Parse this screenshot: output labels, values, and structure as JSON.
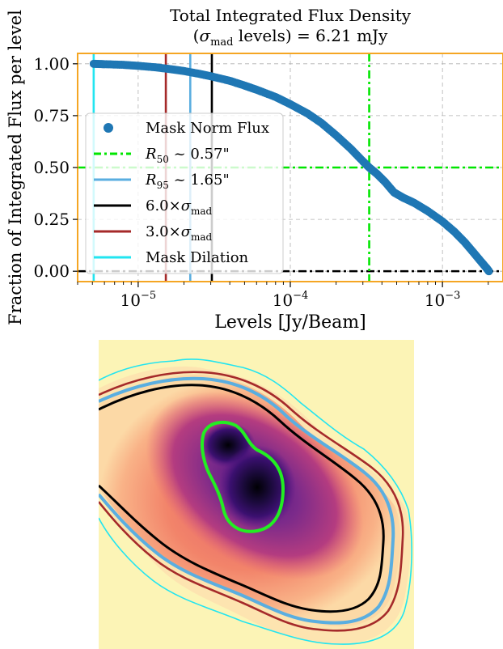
{
  "chart_data": [
    {
      "type": "scatter",
      "title_line1": "Total Integrated Flux Density",
      "title_line2_math": "σ",
      "title_line2_sub": "mad",
      "title_line2_rest": " levels) = 6.21 mJy",
      "title_line2_open": "(",
      "xlabel": "Levels [Jy/Beam]",
      "ylabel": "Fraction of Integrated Flux per level",
      "xscale": "log",
      "xlim": [
        4e-06,
        0.0025
      ],
      "ylim": [
        -0.05,
        1.05
      ],
      "yticks": [
        0.0,
        0.25,
        0.5,
        0.75,
        1.0
      ],
      "yticklabels": [
        "0.00",
        "0.25",
        "0.50",
        "0.75",
        "1.00"
      ],
      "xticks": [
        1e-05,
        0.0001,
        0.001
      ],
      "xticklabels": [
        {
          "base": "10",
          "exp": "−5"
        },
        {
          "base": "10",
          "exp": "−4"
        },
        {
          "base": "10",
          "exp": "−3"
        }
      ],
      "grid": true,
      "legend_location": "lower left",
      "series": [
        {
          "name": "Mask Norm Flux",
          "kind": "points",
          "color": "#1f77b4",
          "x": [
            5.1e-06,
            6e-06,
            8e-06,
            1e-05,
            1.3e-05,
            1.6e-05,
            2e-05,
            2.5e-05,
            3e-05,
            4e-05,
            5e-05,
            6e-05,
            8e-05,
            0.0001,
            0.00013,
            0.00016,
            0.0002,
            0.00025,
            0.0003,
            0.00033,
            0.00037,
            0.00042,
            0.00048,
            0.00055,
            0.00065,
            0.0008,
            0.001,
            0.0012,
            0.0014,
            0.0016,
            0.0018,
            0.00195,
            0.00202
          ],
          "y": [
            1.0,
            0.998,
            0.995,
            0.99,
            0.983,
            0.975,
            0.965,
            0.952,
            0.94,
            0.918,
            0.895,
            0.875,
            0.84,
            0.805,
            0.76,
            0.715,
            0.655,
            0.59,
            0.53,
            0.5,
            0.47,
            0.43,
            0.38,
            0.355,
            0.33,
            0.29,
            0.24,
            0.19,
            0.14,
            0.09,
            0.045,
            0.015,
            0.0
          ]
        },
        {
          "name": "R50_label",
          "legend_label": "~ 0.57\"",
          "legend_math": "R",
          "legend_sub": "50",
          "kind": "crosshair",
          "color": "#00e600",
          "x": 0.00033,
          "y": 0.5
        },
        {
          "name": "R95_label",
          "legend_label": "~ 1.65\"",
          "legend_math": "R",
          "legend_sub": "95",
          "kind": "vline",
          "color": "#5aaee0",
          "x": 2.2e-05
        },
        {
          "name": "sigma6",
          "legend_prefix": "6.0×",
          "legend_math": "σ",
          "legend_sub": "mad",
          "kind": "vline",
          "color": "#000000",
          "x": 3.05e-05
        },
        {
          "name": "sigma3",
          "legend_prefix": "3.0×",
          "legend_math": "σ",
          "legend_sub": "mad",
          "kind": "vline",
          "color": "#a52a2a",
          "x": 1.52e-05
        },
        {
          "name": "Mask Dilation",
          "kind": "vline",
          "color": "#22e5f0",
          "x": 5.1e-06
        }
      ],
      "zero_line": {
        "y": 0.0,
        "color": "#000000"
      },
      "frame_color": "#f5a623"
    },
    {
      "type": "heatmap",
      "colormap": "magma-like",
      "contours": [
        {
          "label": "Mask Dilation",
          "color": "#22e5f0"
        },
        {
          "label": "3.0 sigma_mad",
          "color": "#a52a2a"
        },
        {
          "label": "R95",
          "color": "#5aaee0"
        },
        {
          "label": "6.0 sigma_mad",
          "color": "#000000"
        },
        {
          "label": "R50",
          "color": "#22ee22"
        }
      ]
    }
  ]
}
